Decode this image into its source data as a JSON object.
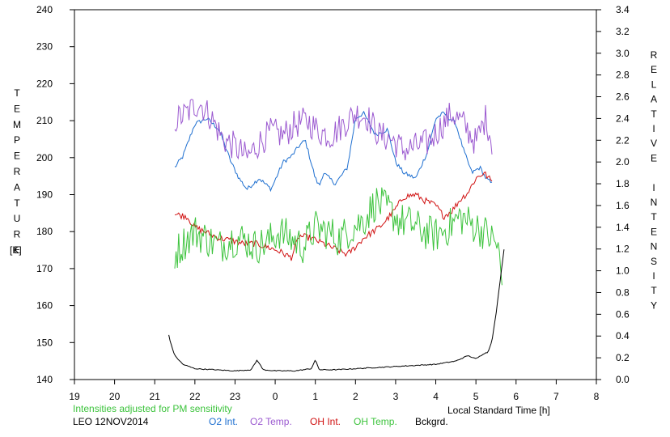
{
  "chart_data": {
    "type": "line",
    "ylabel": "TEMPERATURE",
    "yunit": "[K]",
    "y2label": "RELATIVE INTENSITY",
    "xlabel": "Local Standard Time [h]",
    "note": "Intensities adjusted for PM sensitivity",
    "station_date": "LEO 12NOV2014",
    "xlim": [
      19,
      8
    ],
    "x_ticks": [
      "19",
      "20",
      "21",
      "22",
      "23",
      "0",
      "1",
      "2",
      "3",
      "4",
      "5",
      "6",
      "7",
      "8"
    ],
    "ylim": [
      140,
      240
    ],
    "y_ticks": [
      "140",
      "150",
      "160",
      "170",
      "180",
      "190",
      "200",
      "210",
      "220",
      "230",
      "240"
    ],
    "y2lim": [
      0.0,
      3.4
    ],
    "y2_ticks": [
      "0.0",
      "0.2",
      "0.4",
      "0.6",
      "0.8",
      "1.0",
      "1.2",
      "1.4",
      "1.6",
      "1.8",
      "2.0",
      "2.2",
      "2.4",
      "2.6",
      "2.8",
      "3.0",
      "3.2",
      "3.4"
    ],
    "grid": false,
    "legend_position": "bottom",
    "series": [
      {
        "name": "O2 Int.",
        "color": "#1e6fd0",
        "axis": "right",
        "noise": 0.02,
        "x": [
          21.5,
          21.7,
          22.0,
          22.3,
          22.6,
          22.9,
          23.1,
          23.3,
          23.6,
          23.9,
          24.2,
          24.4,
          24.6,
          24.75,
          25.0,
          25.1,
          25.2,
          25.5,
          25.8,
          26.0,
          26.2,
          26.5,
          26.8,
          27.0,
          27.2,
          27.5,
          27.8,
          28.0,
          28.2,
          28.5,
          28.7,
          28.9,
          29.1,
          29.25,
          29.4
        ],
        "y": [
          1.95,
          2.05,
          2.35,
          2.4,
          2.3,
          2.0,
          1.85,
          1.75,
          1.85,
          1.75,
          2.0,
          2.05,
          2.15,
          2.2,
          1.85,
          1.78,
          1.9,
          1.8,
          1.95,
          2.4,
          2.45,
          2.25,
          2.3,
          2.0,
          1.9,
          1.85,
          2.1,
          2.4,
          2.45,
          2.35,
          2.1,
          1.9,
          1.95,
          1.85,
          1.8
        ]
      },
      {
        "name": "O2 Temp.",
        "color": "#9b59d0",
        "axis": "left",
        "noise": 4,
        "x": [
          21.5,
          21.8,
          22.1,
          22.4,
          22.7,
          23.0,
          23.3,
          23.6,
          23.9,
          24.2,
          24.5,
          24.8,
          25.1,
          25.4,
          25.7,
          26.0,
          26.3,
          26.6,
          26.9,
          27.2,
          27.5,
          27.8,
          28.1,
          28.4,
          28.7,
          29.0,
          29.25,
          29.4
        ],
        "y": [
          210,
          212,
          215,
          211,
          205,
          203,
          200,
          204,
          207,
          206,
          209,
          210,
          207,
          206,
          209,
          212,
          211,
          206,
          205,
          202,
          203,
          204,
          208,
          212,
          209,
          204,
          211,
          204
        ]
      },
      {
        "name": "OH Int.",
        "color": "#d01010",
        "axis": "right",
        "noise": 0.03,
        "x": [
          21.5,
          21.8,
          22.0,
          22.3,
          22.6,
          22.9,
          23.2,
          23.5,
          23.8,
          24.1,
          24.4,
          24.6,
          24.9,
          25.2,
          25.5,
          25.8,
          26.0,
          26.2,
          26.4,
          26.6,
          26.8,
          27.0,
          27.2,
          27.5,
          27.7,
          28.0,
          28.2,
          28.4,
          28.6,
          28.8,
          29.0,
          29.2,
          29.4
        ],
        "y": [
          1.52,
          1.5,
          1.4,
          1.35,
          1.3,
          1.28,
          1.25,
          1.25,
          1.22,
          1.18,
          1.12,
          1.32,
          1.3,
          1.25,
          1.2,
          1.15,
          1.22,
          1.3,
          1.35,
          1.4,
          1.48,
          1.57,
          1.68,
          1.7,
          1.65,
          1.6,
          1.5,
          1.55,
          1.65,
          1.72,
          1.85,
          1.9,
          1.82
        ]
      },
      {
        "name": "OH Temp.",
        "color": "#3cc33c",
        "axis": "left",
        "noise": 5,
        "x": [
          21.5,
          21.8,
          22.0,
          22.3,
          22.6,
          22.9,
          23.2,
          23.5,
          23.8,
          24.1,
          24.4,
          24.7,
          25.0,
          25.3,
          25.6,
          25.9,
          26.2,
          26.5,
          26.8,
          27.1,
          27.4,
          27.7,
          28.0,
          28.3,
          28.6,
          28.9,
          29.2,
          29.4,
          29.55,
          29.65
        ],
        "y": [
          174,
          178,
          180,
          178,
          176,
          178,
          178,
          176,
          177,
          180,
          178,
          176,
          181,
          180,
          178,
          181,
          183,
          188,
          186,
          183,
          182,
          180,
          179,
          181,
          184,
          182,
          180,
          178,
          176,
          165
        ]
      },
      {
        "name": "Bckgrd.",
        "color": "#000000",
        "axis": "right",
        "noise": 0.004,
        "x": [
          21.35,
          21.4,
          21.5,
          21.7,
          22.0,
          22.5,
          23.0,
          23.4,
          23.55,
          23.7,
          24.0,
          24.5,
          24.9,
          25.0,
          25.1,
          25.5,
          26.0,
          26.5,
          27.0,
          27.5,
          28.0,
          28.5,
          28.8,
          29.0,
          29.2,
          29.3,
          29.4,
          29.5,
          29.6,
          29.7
        ],
        "y": [
          0.41,
          0.33,
          0.22,
          0.14,
          0.1,
          0.09,
          0.08,
          0.09,
          0.18,
          0.09,
          0.08,
          0.08,
          0.1,
          0.18,
          0.09,
          0.09,
          0.1,
          0.11,
          0.12,
          0.13,
          0.14,
          0.17,
          0.22,
          0.19,
          0.24,
          0.25,
          0.36,
          0.6,
          0.9,
          1.2
        ]
      }
    ]
  }
}
